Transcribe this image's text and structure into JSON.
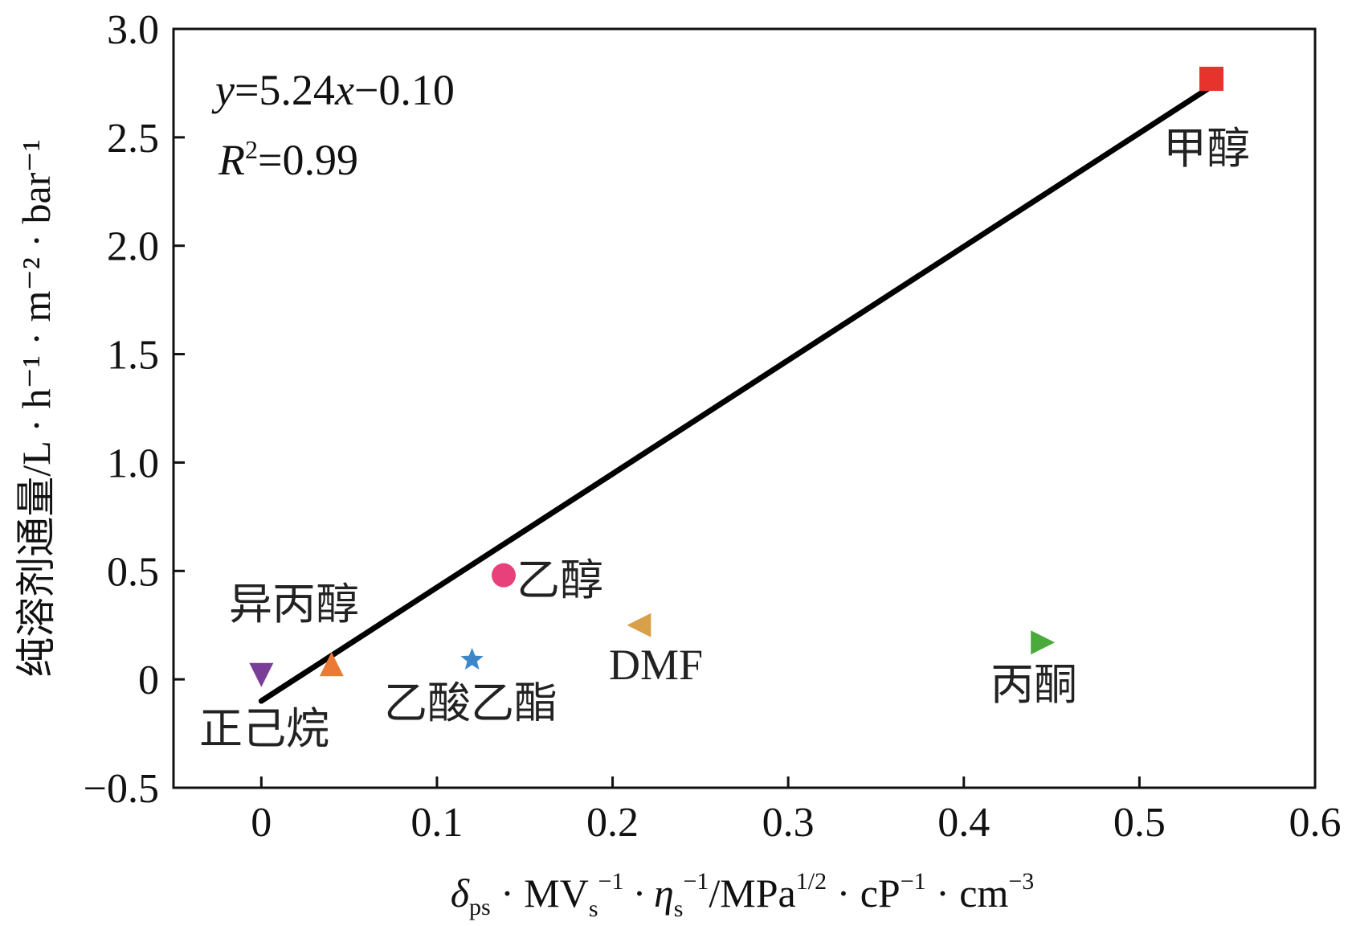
{
  "chart_data": {
    "type": "scatter",
    "title": "",
    "xlabel": {
      "parts": [
        "δ",
        "ps",
        " · MV",
        "s",
        "−1",
        " · η",
        "s",
        "−1",
        "/MPa",
        "1/2",
        " · cP",
        "−1",
        " · cm",
        "−3"
      ]
    },
    "ylabel": "纯溶剂通量/L · h⁻¹ · m⁻² · bar⁻¹",
    "xlim": [
      -0.05,
      0.6
    ],
    "ylim": [
      -0.5,
      3.0
    ],
    "xticks": [
      0,
      0.1,
      0.2,
      0.3,
      0.4,
      0.5,
      0.6
    ],
    "xtick_labels": [
      "0",
      "0.1",
      "0.2",
      "0.3",
      "0.4",
      "0.5",
      "0.6"
    ],
    "yticks": [
      -0.5,
      0,
      0.5,
      1.0,
      1.5,
      2.0,
      2.5,
      3.0
    ],
    "ytick_labels": [
      "−0.5",
      "0",
      "0.5",
      "1.0",
      "1.5",
      "2.0",
      "2.5",
      "3.0"
    ],
    "grid": false,
    "points": [
      {
        "label": "甲醇",
        "x": 0.541,
        "y": 2.77,
        "marker": "square",
        "color": "#e8322c"
      },
      {
        "label": "乙醇",
        "x": 0.138,
        "y": 0.48,
        "marker": "circle",
        "color": "#e8407a"
      },
      {
        "label": "DMF",
        "x": 0.215,
        "y": 0.25,
        "marker": "triangle-left",
        "color": "#d9a04a"
      },
      {
        "label": "丙酮",
        "x": 0.445,
        "y": 0.17,
        "marker": "triangle-right",
        "color": "#4aaa3c"
      },
      {
        "label": "乙酸乙酯",
        "x": 0.12,
        "y": 0.09,
        "marker": "star",
        "color": "#3d86c9"
      },
      {
        "label": "异丙醇",
        "x": 0.04,
        "y": 0.07,
        "marker": "triangle-up",
        "color": "#ea7a35"
      },
      {
        "label": "正己烷",
        "x": 0.0,
        "y": 0.02,
        "marker": "triangle-down",
        "color": "#7b3e98"
      }
    ],
    "fit_line": {
      "slope": 5.24,
      "intercept": -0.1,
      "x_range": [
        0.0,
        0.54
      ],
      "color": "#000000"
    },
    "equation": {
      "y_var": "y",
      "eq": "=5.24",
      "x_var": "x",
      "rest": "−0.10"
    },
    "r2": {
      "r_var": "R",
      "sup": "2",
      "value": "=0.99"
    }
  }
}
